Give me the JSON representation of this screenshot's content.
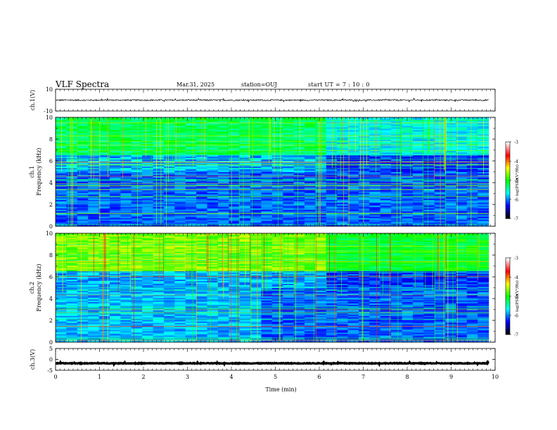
{
  "header": {
    "title": "VLF Spectra",
    "date": "Mar.31, 2025",
    "station": "station=OUJ",
    "start": "start  UT  =   7 : 10 : 0"
  },
  "chart_data": [
    {
      "type": "line",
      "panel": "ch1-waveform",
      "ylabel": "ch.1(V)",
      "ylim": [
        -10,
        10
      ],
      "yticks": [
        "10",
        "-10"
      ],
      "xlim": [
        0,
        10
      ],
      "mean_value": 0,
      "spread": 0.6
    },
    {
      "type": "heatmap",
      "panel": "ch1-spectrogram",
      "ylabel": "ch.1\nFrequency (kHz)",
      "ylim": [
        0,
        10
      ],
      "yticks": [
        "0",
        "2",
        "4",
        "6",
        "8",
        "10"
      ],
      "xlim": [
        0,
        9.85
      ],
      "data_end_min": 9.85,
      "colorbar": {
        "label": "log(PSD)(V²/Hz)",
        "range": [
          -7,
          -3
        ],
        "ticks": [
          "-3",
          "-4",
          "-5",
          "-6",
          "-7"
        ]
      }
    },
    {
      "type": "heatmap",
      "panel": "ch2-spectrogram",
      "ylabel": "ch.2\nFrequency (kHz)",
      "ylim": [
        0,
        10
      ],
      "yticks": [
        "0",
        "2",
        "4",
        "6",
        "8",
        "10"
      ],
      "xlim": [
        0,
        9.85
      ],
      "data_end_min": 9.85,
      "colorbar": {
        "label": "log(PSD)(V²/Hz)",
        "range": [
          -7,
          -3
        ],
        "ticks": [
          "-3",
          "-4",
          "-5",
          "-6",
          "-7"
        ]
      }
    },
    {
      "type": "line",
      "panel": "ch3-waveform",
      "ylabel": "ch.3(V)",
      "ylim": [
        -5,
        5
      ],
      "yticks": [
        "5",
        "0",
        "-5"
      ],
      "xlim": [
        0,
        10
      ],
      "mean_value": -1.8,
      "spread": 0.15
    }
  ],
  "xaxis": {
    "label": "Time  (min)",
    "ticks": [
      "0",
      "1",
      "2",
      "3",
      "4",
      "5",
      "6",
      "7",
      "8",
      "9",
      "10"
    ],
    "range": [
      0,
      10
    ]
  },
  "colors": {
    "axis": "#000000",
    "trace": "#000000",
    "colormap": [
      "#000000",
      "#0000ff",
      "#00ffff",
      "#00ff00",
      "#ffff00",
      "#ff0000",
      "#ffffff"
    ]
  }
}
